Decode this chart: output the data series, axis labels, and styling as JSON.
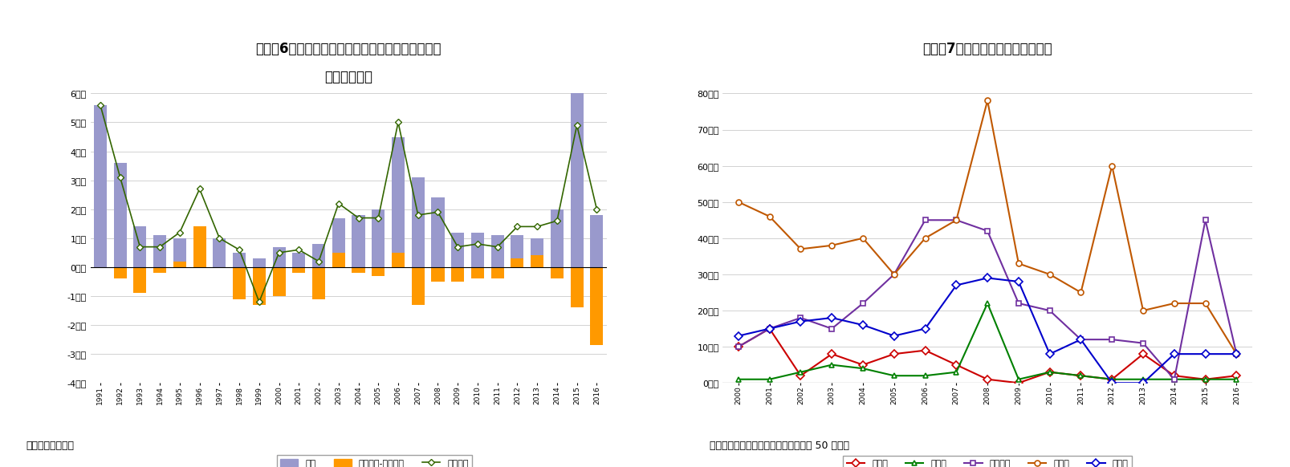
{
  "chart1": {
    "title1": "図表－6　名古屋ビジネス地区の新築・既存ビル別",
    "title2": "賃貸面積増分",
    "years": [
      1991,
      1992,
      1993,
      1994,
      1995,
      1996,
      1997,
      1998,
      1999,
      2000,
      2001,
      2002,
      2003,
      2004,
      2005,
      2006,
      2007,
      2008,
      2009,
      2010,
      2011,
      2012,
      2013,
      2014,
      2015,
      2016
    ],
    "shinchiku": [
      5.6,
      3.6,
      1.4,
      1.1,
      1.0,
      1.3,
      1.0,
      0.5,
      0.3,
      0.7,
      0.5,
      0.8,
      1.7,
      1.8,
      2.0,
      4.5,
      3.1,
      2.4,
      1.2,
      1.2,
      1.1,
      1.1,
      1.0,
      2.0,
      6.3,
      1.8
    ],
    "kizon": [
      0.0,
      -0.4,
      -0.9,
      -0.2,
      0.2,
      1.4,
      0.0,
      -1.1,
      -1.3,
      -1.0,
      -0.2,
      -1.1,
      0.5,
      -0.2,
      -0.3,
      0.5,
      -1.3,
      -0.5,
      -0.5,
      -0.4,
      -0.4,
      0.3,
      0.4,
      -0.4,
      -1.4,
      -2.7
    ],
    "zentai": [
      5.6,
      3.1,
      0.7,
      0.7,
      1.2,
      2.7,
      1.0,
      0.6,
      -1.2,
      0.5,
      0.6,
      0.2,
      2.2,
      1.7,
      1.7,
      5.0,
      1.8,
      1.9,
      0.7,
      0.8,
      0.7,
      1.4,
      1.4,
      1.6,
      4.9,
      2.0
    ],
    "ylim": [
      -4,
      6
    ],
    "yticks": [
      -4,
      -3,
      -2,
      -1,
      0,
      1,
      2,
      3,
      4,
      5,
      6
    ],
    "ytick_labels": [
      "-4万坪",
      "-3万坪",
      "-2万坪",
      "-1万坪",
      "0万坪",
      "1万坪",
      "2万坪",
      "3万坪",
      "4万坪",
      "5万坪",
      "6万坪"
    ],
    "bar_color_shinchiku": "#9999cc",
    "bar_color_kizon": "#ff9900",
    "line_color_zentai": "#336600",
    "legend_shinchiku": "新築",
    "legend_kizon": "既存増加-前年新築",
    "legend_zentai": "全体増加",
    "source": "（出所）三鬼商事"
  },
  "chart2": {
    "title": "図表－7　主要都市の新規供給面積",
    "years": [
      2000,
      2001,
      2002,
      2003,
      2004,
      2005,
      2006,
      2007,
      2008,
      2009,
      2010,
      2011,
      2012,
      2013,
      2014,
      2015,
      2016
    ],
    "sapporo": [
      10,
      15,
      2,
      8,
      5,
      8,
      9,
      5,
      1,
      0,
      3,
      2,
      1,
      8,
      2,
      1,
      2
    ],
    "sendai": [
      1,
      1,
      3,
      5,
      4,
      2,
      2,
      3,
      22,
      1,
      3,
      2,
      1,
      1,
      1,
      1,
      1
    ],
    "nagoya": [
      10,
      15,
      18,
      15,
      22,
      30,
      45,
      45,
      42,
      22,
      20,
      12,
      12,
      11,
      1,
      45,
      8
    ],
    "osaka": [
      50,
      46,
      37,
      38,
      40,
      30,
      40,
      45,
      78,
      33,
      30,
      25,
      60,
      20,
      22,
      22,
      8
    ],
    "fukuoka": [
      13,
      15,
      17,
      18,
      16,
      13,
      15,
      27,
      29,
      28,
      8,
      12,
      0,
      0,
      8,
      8,
      8
    ],
    "ylim": [
      0,
      80
    ],
    "yticks": [
      0,
      10,
      20,
      30,
      40,
      50,
      60,
      70,
      80
    ],
    "ytick_labels": [
      "0千坪",
      "10千坪",
      "20千坪",
      "30千坪",
      "40千坪",
      "50千坪",
      "60千坪",
      "70千坪",
      "80千坪"
    ],
    "colors": {
      "sapporo": "#cc0000",
      "sendai": "#008000",
      "nagoya": "#7030a0",
      "osaka": "#c05800",
      "fukuoka": "#0000cc"
    },
    "markers": {
      "sapporo": "D",
      "sendai": "^",
      "nagoya": "s",
      "osaka": "o",
      "fukuoka": "D"
    },
    "legend": [
      "札幌市",
      "仙台市",
      "名古屋市",
      "大阪市",
      "福岡市"
    ],
    "source": "（出所）三幸エステート、基準階面穌 50 坊以上"
  },
  "bg_color": "#ffffff",
  "font_size_title": 12,
  "font_size_tick": 8,
  "font_size_legend": 8,
  "font_size_source": 9
}
